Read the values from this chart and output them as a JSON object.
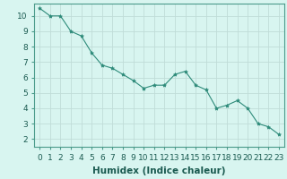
{
  "x": [
    0,
    1,
    2,
    3,
    4,
    5,
    6,
    7,
    8,
    9,
    10,
    11,
    12,
    13,
    14,
    15,
    16,
    17,
    18,
    19,
    20,
    21,
    22,
    23
  ],
  "y": [
    10.5,
    10.0,
    10.0,
    9.0,
    8.7,
    7.6,
    6.8,
    6.6,
    6.2,
    5.8,
    5.3,
    5.5,
    5.5,
    6.2,
    6.4,
    5.5,
    5.2,
    4.0,
    4.2,
    4.5,
    4.0,
    3.0,
    2.8,
    2.3
  ],
  "line_color": "#2e8b7a",
  "marker": "*",
  "marker_size": 3,
  "bg_color": "#d8f5f0",
  "grid_color": "#c0dcd8",
  "xlabel": "Humidex (Indice chaleur)",
  "xlabel_fontsize": 7.5,
  "tick_fontsize": 6.5,
  "xlim": [
    -0.5,
    23.5
  ],
  "ylim": [
    1.5,
    10.8
  ],
  "yticks": [
    2,
    3,
    4,
    5,
    6,
    7,
    8,
    9,
    10
  ],
  "xticks": [
    0,
    1,
    2,
    3,
    4,
    5,
    6,
    7,
    8,
    9,
    10,
    11,
    12,
    13,
    14,
    15,
    16,
    17,
    18,
    19,
    20,
    21,
    22,
    23
  ]
}
